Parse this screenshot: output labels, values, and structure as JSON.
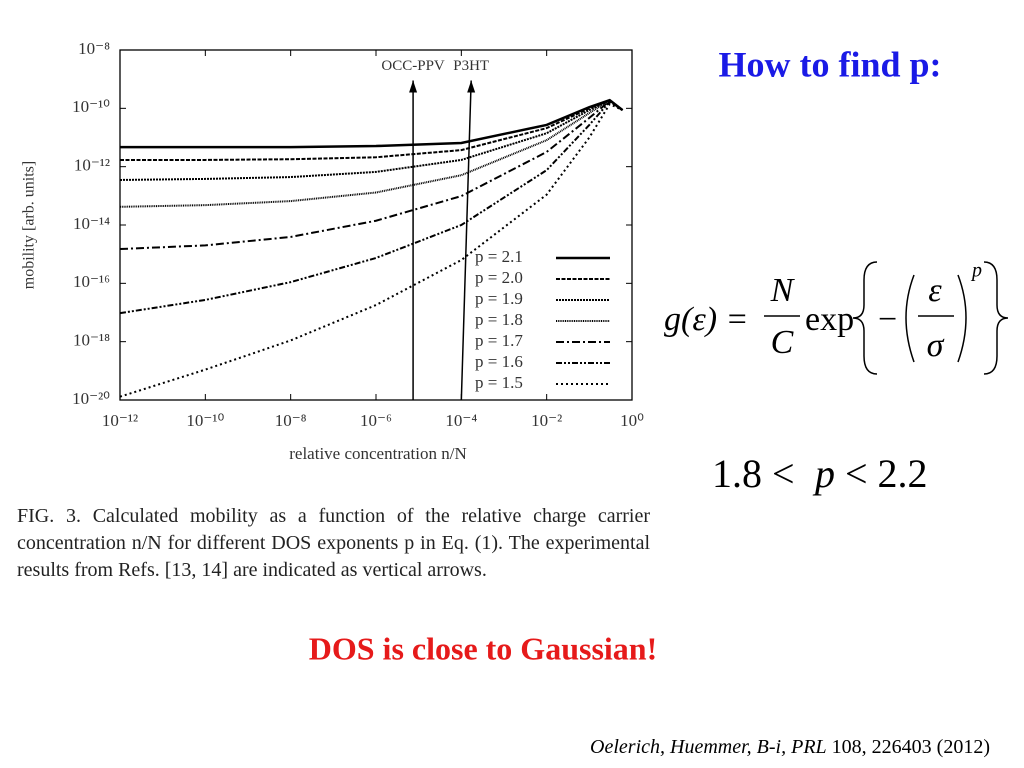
{
  "chart_data": {
    "type": "line",
    "x_label": "relative concentration n/N",
    "y_label": "mobility [arb. units]",
    "xscale": "log",
    "yscale": "log",
    "xlim": [
      1e-12,
      1
    ],
    "ylim": [
      1e-20,
      1e-08
    ],
    "xticks": [
      {
        "value": 1e-12,
        "label": "10⁻¹²"
      },
      {
        "value": 1e-10,
        "label": "10⁻¹⁰"
      },
      {
        "value": 1e-08,
        "label": "10⁻⁸"
      },
      {
        "value": 1e-06,
        "label": "10⁻⁶"
      },
      {
        "value": 0.0001,
        "label": "10⁻⁴"
      },
      {
        "value": 0.01,
        "label": "10⁻²"
      },
      {
        "value": 1,
        "label": "10⁰"
      }
    ],
    "yticks": [
      {
        "value": 1e-20,
        "label": "10⁻²⁰"
      },
      {
        "value": 1e-18,
        "label": "10⁻¹⁸"
      },
      {
        "value": 1e-16,
        "label": "10⁻¹⁶"
      },
      {
        "value": 1e-14,
        "label": "10⁻¹⁴"
      },
      {
        "value": 1e-12,
        "label": "10⁻¹²"
      },
      {
        "value": 1e-10,
        "label": "10⁻¹⁰"
      },
      {
        "value": 1e-08,
        "label": "10⁻⁸"
      }
    ],
    "x": [
      1e-12,
      1e-10,
      1e-08,
      1e-06,
      0.0001,
      0.01,
      0.1,
      0.3,
      0.6
    ],
    "series": [
      {
        "name": "p = 2.1",
        "color": "#000000",
        "values": [
          4.7e-12,
          4.7e-12,
          4.7e-12,
          5.1e-12,
          6.5e-12,
          2.7e-11,
          1.1e-10,
          1.9e-10,
          8.7e-11
        ]
      },
      {
        "name": "p = 2.0",
        "color": "#000000",
        "values": [
          1.7e-12,
          1.7e-12,
          1.8e-12,
          2.1e-12,
          3.7e-12,
          2.1e-11,
          1e-10,
          1.9e-10,
          8.7e-11
        ]
      },
      {
        "name": "p = 1.9",
        "color": "#000000",
        "values": [
          3.5e-13,
          3.8e-13,
          4.4e-13,
          6.6e-13,
          1.7e-12,
          1.4e-11,
          8.7e-11,
          1.9e-10,
          8.7e-11
        ]
      },
      {
        "name": "p = 1.8",
        "color": "#000000",
        "values": [
          4.2e-14,
          4.8e-14,
          6.6e-14,
          1.3e-13,
          5.1e-13,
          8.1e-12,
          6.9e-11,
          1.9e-10,
          8.7e-11
        ]
      },
      {
        "name": "p = 1.7",
        "color": "#000000",
        "values": [
          1.5e-15,
          2e-15,
          3.9e-15,
          1.4e-14,
          9.8e-14,
          3.2e-12,
          4.7e-11,
          1.8e-10,
          8.7e-11
        ]
      },
      {
        "name": "p = 1.6",
        "color": "#000000",
        "values": [
          9.5e-18,
          2.7e-17,
          1.1e-16,
          7.4e-16,
          1e-14,
          7.6e-13,
          2.7e-11,
          1.7e-10,
          8.7e-11
        ]
      },
      {
        "name": "p = 1.5",
        "color": "#000000",
        "values": [
          1.3e-20,
          1.1e-19,
          1.1e-18,
          1.8e-17,
          6.3e-16,
          1.1e-13,
          1e-11,
          1.4e-10,
          8.7e-11
        ]
      }
    ],
    "arrows": [
      {
        "label": "OCC-PPV",
        "x": [
          7.4e-06,
          7.4e-06
        ],
        "y_tip": 9e-10
      },
      {
        "label": "P3HT",
        "x": [
          0.0001,
          0.00017
        ],
        "y_tip": 9e-10
      }
    ]
  },
  "caption": "FIG. 3. Calculated mobility as a function of the relative charge carrier concentration n/N for different DOS exponents p in Eq. (1). The experimental results from Refs. [13, 14] are indicated as vertical arrows.",
  "heading": "How to find p:",
  "formula": {
    "lhs": "g(ε) =",
    "num": "N",
    "den": "C",
    "exp": "exp",
    "minus": "−",
    "inner_num": "ε",
    "inner_den": "σ",
    "power": "p"
  },
  "range": {
    "left": "1.8 <",
    "var": "p",
    "right": "< 2.2"
  },
  "conclusion": "DOS is close to Gaussian!",
  "citation": {
    "authors": "Oelerich, Huemmer, B-i,",
    "journal": "PRL",
    "rest": "108, 226403 (2012)"
  }
}
